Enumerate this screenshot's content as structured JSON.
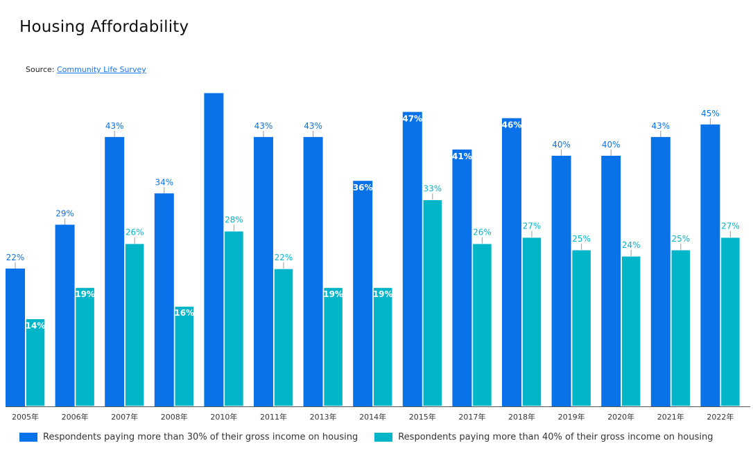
{
  "header": {
    "title": "Housing Affordability",
    "source_prefix": "Source: ",
    "source_link": "Community Life Survey"
  },
  "colors": {
    "series1": "#0a72e8",
    "series2": "#00b5c8",
    "axis": "#555555"
  },
  "chart_data": {
    "type": "bar",
    "title": "Housing Affordability",
    "xlabel": "",
    "ylabel": "",
    "ylim": [
      0,
      50
    ],
    "grid": false,
    "legend": "bottom",
    "categories": [
      "2005年",
      "2006年",
      "2007年",
      "2008年",
      "2010年",
      "2011年",
      "2013年",
      "2014年",
      "2015年",
      "2017年",
      "2018年",
      "2019年",
      "2020年",
      "2021年",
      "2022年"
    ],
    "series": [
      {
        "name": "Respondents paying more than 30% of their gross income on housing",
        "values": [
          22,
          29,
          43,
          34,
          50,
          43,
          43,
          36,
          47,
          41,
          46,
          40,
          40,
          43,
          45
        ],
        "labels": [
          "22%",
          "29%",
          "43%",
          "34%",
          "",
          "43%",
          "43%",
          "36%",
          "47%",
          "41%",
          "46%",
          "40%",
          "40%",
          "43%",
          "45%"
        ]
      },
      {
        "name": "Respondents paying more than 40% of their gross income on housing",
        "values": [
          14,
          19,
          26,
          16,
          28,
          22,
          19,
          19,
          33,
          26,
          27,
          25,
          24,
          25,
          27
        ],
        "labels": [
          "14%",
          "19%",
          "26%",
          "16%",
          "28%",
          "22%",
          "19%",
          "19%",
          "33%",
          "26%",
          "27%",
          "25%",
          "24%",
          "25%",
          "27%"
        ]
      }
    ]
  }
}
